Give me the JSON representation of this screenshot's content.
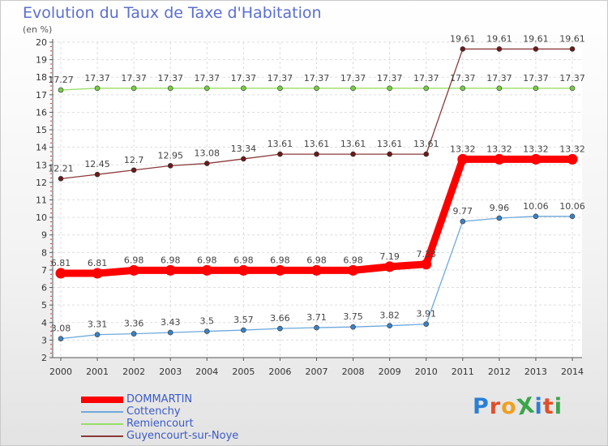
{
  "header": {
    "title": "Evolution du Taux de Taxe d'Habitation",
    "subtitle": "(en %)"
  },
  "logo": {
    "text": "ProXiti",
    "letter_colors": [
      "#2a7fd4",
      "#e04f2a",
      "#f0a020",
      "#3aa64a",
      "#2a7fd4",
      "#e04f2a",
      "#3aa64a"
    ]
  },
  "chart_data": {
    "type": "line",
    "title": "Evolution du Taux de Taxe d'Habitation",
    "ylabel": "(en %)",
    "xlabel": "",
    "x": [
      "2000",
      "2001",
      "2002",
      "2003",
      "2004",
      "2005",
      "2006",
      "2007",
      "2008",
      "2009",
      "2010",
      "2011",
      "2012",
      "2013",
      "2014"
    ],
    "ylim": [
      2,
      20
    ],
    "yticks": [
      2,
      3,
      4,
      5,
      6,
      7,
      8,
      9,
      10,
      11,
      12,
      13,
      14,
      15,
      16,
      17,
      18,
      19,
      20
    ],
    "grid": true,
    "legend_position": "bottom-left",
    "series": [
      {
        "name": "DOMMARTIN",
        "color": "#ff0000",
        "emphasis": true,
        "values": [
          6.81,
          6.81,
          6.98,
          6.98,
          6.98,
          6.98,
          6.98,
          6.98,
          6.98,
          7.19,
          7.33,
          13.32,
          13.32,
          13.32,
          13.32
        ],
        "labels": [
          "6.81",
          "6.81",
          "6.98",
          "6.98",
          "6.98",
          "6.98",
          "6.98",
          "6.98",
          "6.98",
          "7.19",
          "7.33",
          "13.32",
          "13.32",
          "13.32",
          "13.32"
        ]
      },
      {
        "name": "Cottenchy",
        "color": "#6fa8dc",
        "marker_color": "#3b82c4",
        "values": [
          3.08,
          3.31,
          3.36,
          3.43,
          3.5,
          3.57,
          3.66,
          3.71,
          3.75,
          3.82,
          3.91,
          9.77,
          9.96,
          10.06,
          10.06
        ],
        "labels": [
          "3.08",
          "3.31",
          "3.36",
          "3.43",
          "3.5",
          "3.57",
          "3.66",
          "3.71",
          "3.75",
          "3.82",
          "3.91",
          "9.77",
          "9.96",
          "10.06",
          "10.06"
        ]
      },
      {
        "name": "Remiencourt",
        "color": "#99dd66",
        "marker_color": "#77cc44",
        "values": [
          17.27,
          17.37,
          17.37,
          17.37,
          17.37,
          17.37,
          17.37,
          17.37,
          17.37,
          17.37,
          17.37,
          17.37,
          17.37,
          17.37,
          17.37
        ],
        "labels": [
          "17.27",
          "17.37",
          "17.37",
          "17.37",
          "17.37",
          "17.37",
          "17.37",
          "17.37",
          "17.37",
          "17.37",
          "17.37",
          "17.37",
          "17.37",
          "17.37",
          "17.37"
        ]
      },
      {
        "name": "Guyencourt-sur-Noye",
        "color": "#8b3a3a",
        "marker_color": "#6b1a1a",
        "values": [
          12.21,
          12.45,
          12.7,
          12.95,
          13.08,
          13.34,
          13.61,
          13.61,
          13.61,
          13.61,
          13.61,
          19.61,
          19.61,
          19.61,
          19.61
        ],
        "labels": [
          "12.21",
          "12.45",
          "12.7",
          "12.95",
          "13.08",
          "13.34",
          "13.61",
          "13.61",
          "13.61",
          "13.61",
          "13.61",
          "19.61",
          "19.61",
          "19.61",
          "19.61"
        ]
      }
    ]
  }
}
